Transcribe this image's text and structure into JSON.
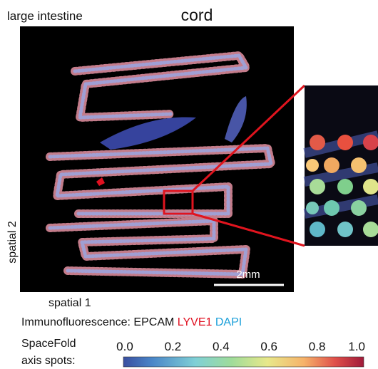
{
  "header": {
    "tissue": "large intestine",
    "title": "cord"
  },
  "image": {
    "scale_bar": "2mm",
    "y_label": "spatial 2",
    "x_label": "spatial 1"
  },
  "legend": {
    "prefix": "Immunofluorescence:",
    "stains": [
      "EPCAM",
      "LYVE1",
      "DAPI"
    ]
  },
  "colorbar": {
    "label_line1": "SpaceFold",
    "label_line2": "axis spots:",
    "ticks": [
      "0.0",
      "0.2",
      "0.4",
      "0.6",
      "0.8",
      "1.0"
    ]
  }
}
